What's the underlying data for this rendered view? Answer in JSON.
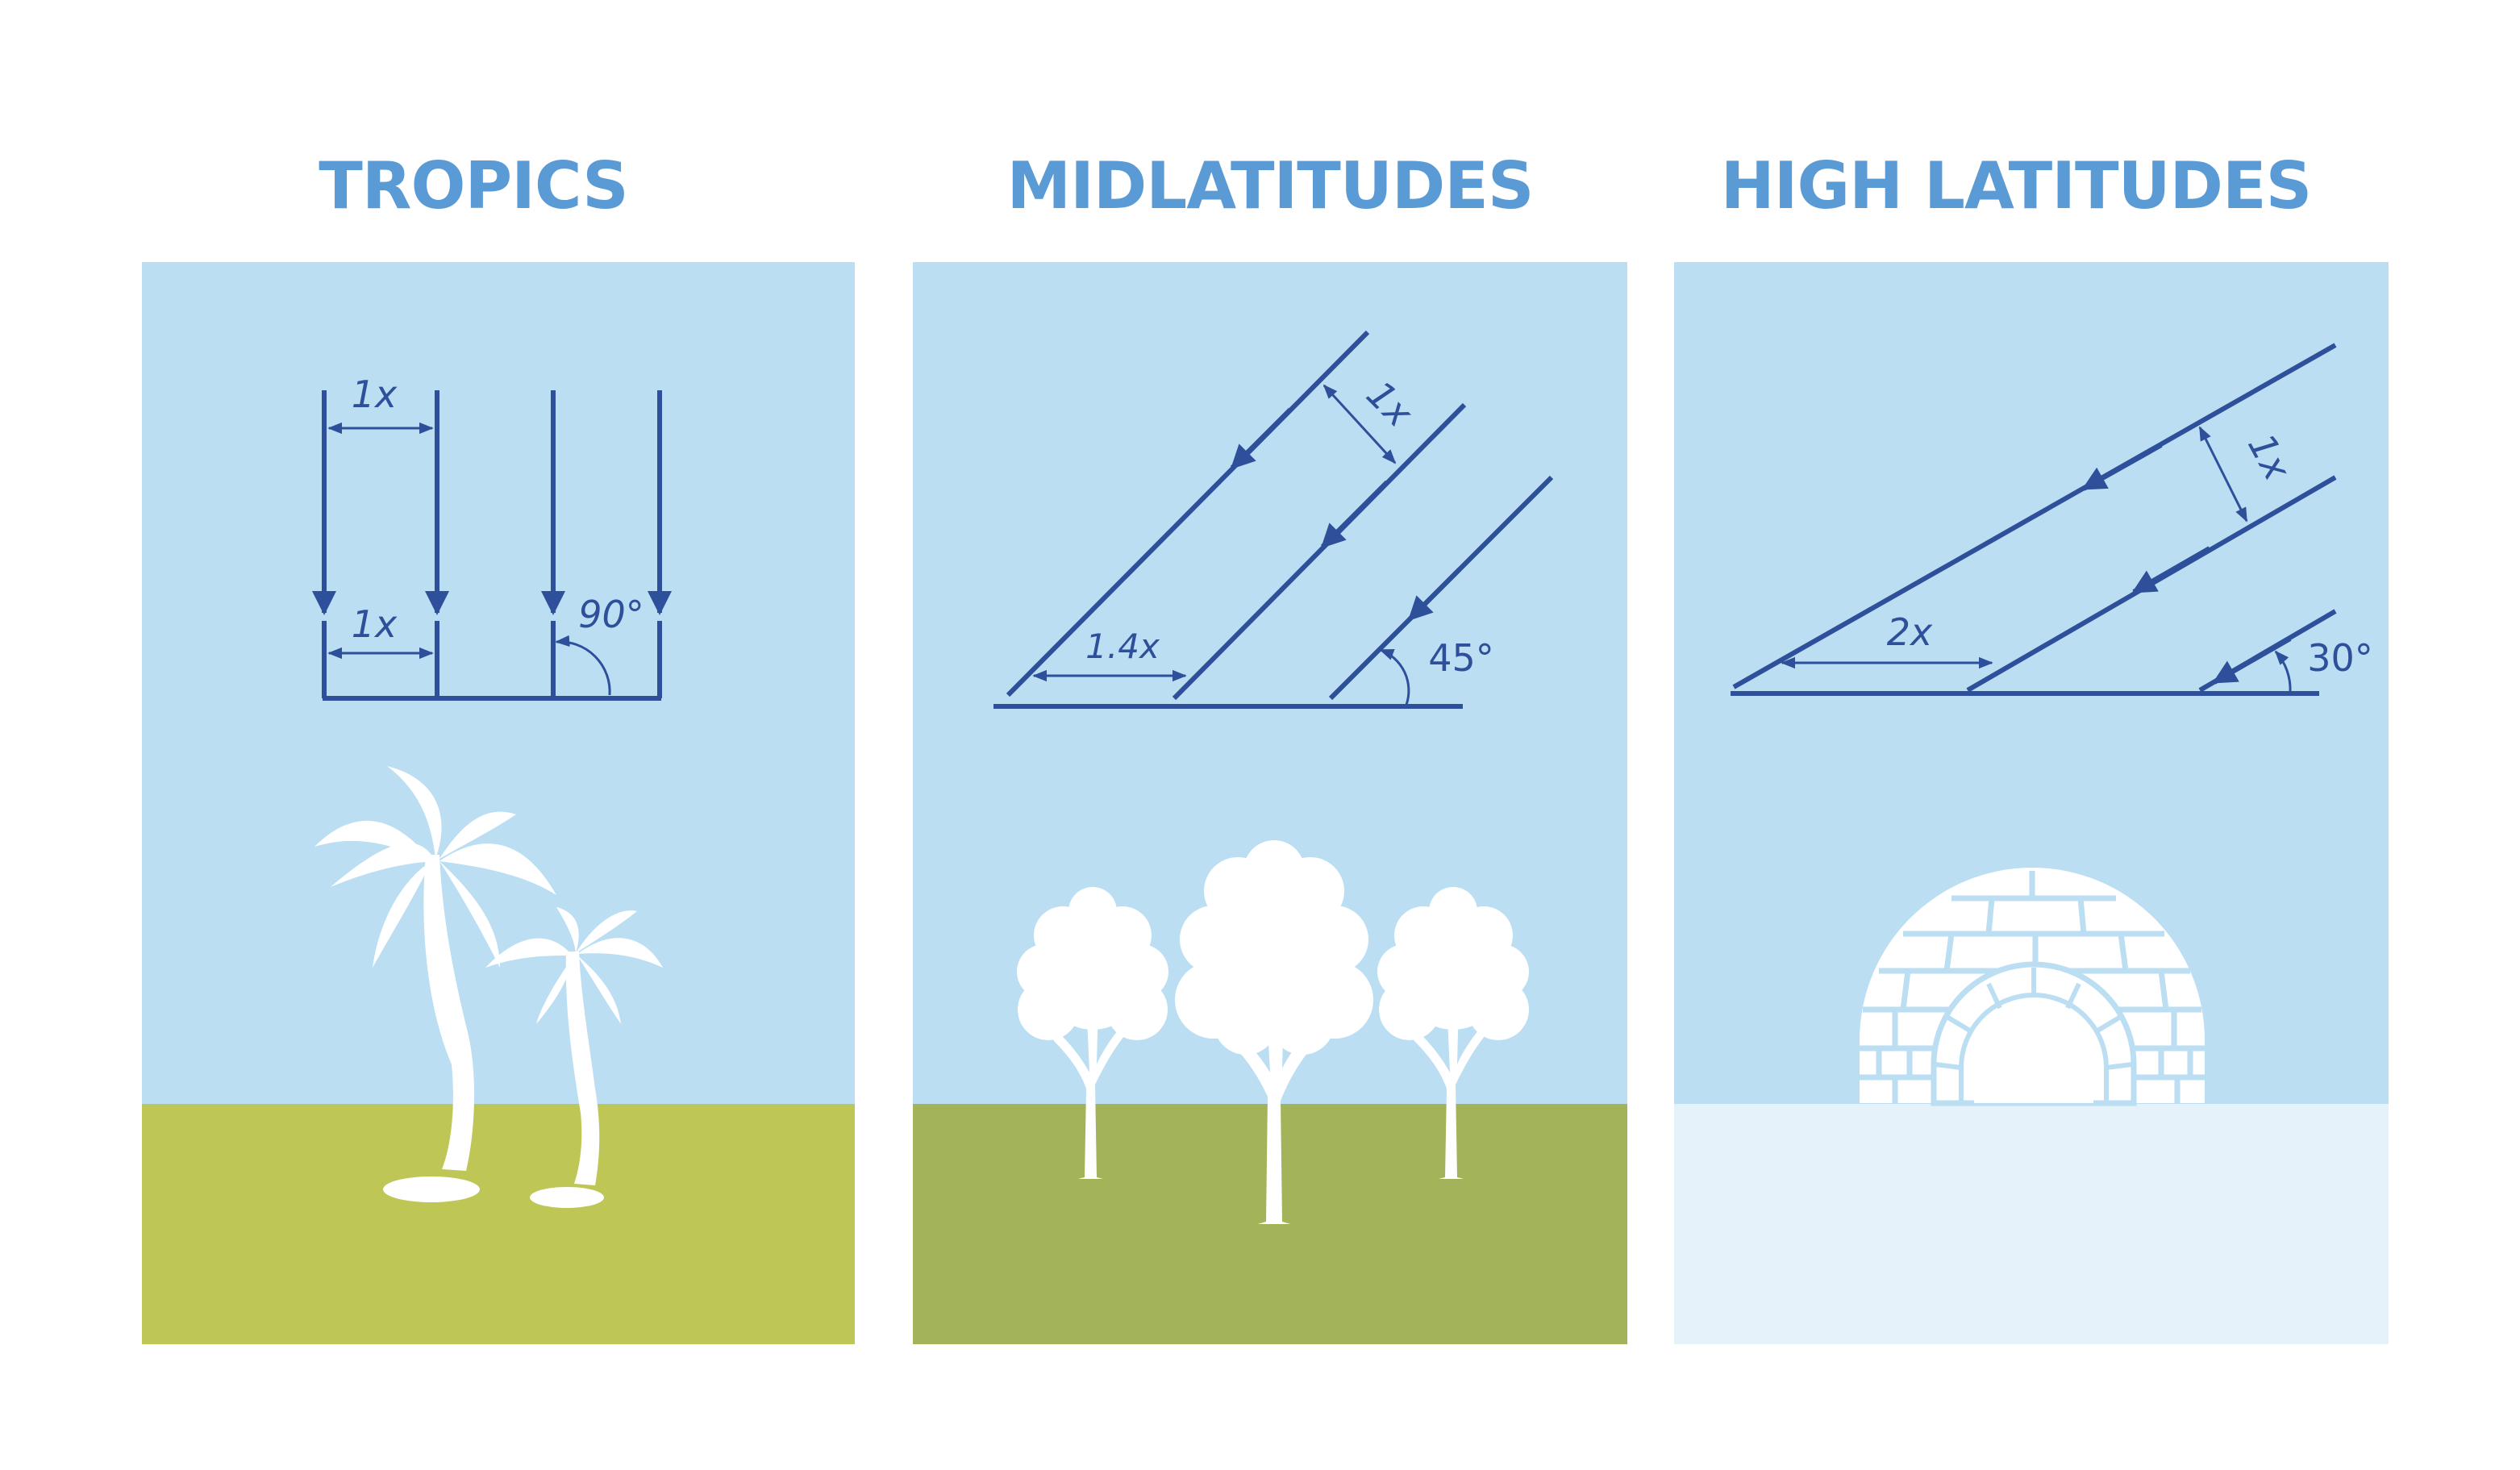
{
  "colors": {
    "heading": "#5b9bd5",
    "sky": "#bbdef3",
    "ray": "#2e4f9a",
    "white": "#ffffff",
    "grass_tropics": "#bec755",
    "grass_midlatitudes": "#a3b35a",
    "snow_high_latitudes": "#e6f2f9"
  },
  "panels": [
    {
      "title": "TROPICS",
      "sun_angle_label": "90°",
      "beam_width_label": "1x",
      "ground_width_label": "1x",
      "scenery": "palm-trees"
    },
    {
      "title": "MIDLATITUDES",
      "sun_angle_label": "45°",
      "beam_width_label": "1x",
      "ground_width_label": "1.4x",
      "scenery": "deciduous-trees"
    },
    {
      "title": "HIGH LATITUDES",
      "sun_angle_label": "30°",
      "beam_width_label": "1x",
      "ground_width_label": "2x",
      "scenery": "igloo"
    }
  ]
}
